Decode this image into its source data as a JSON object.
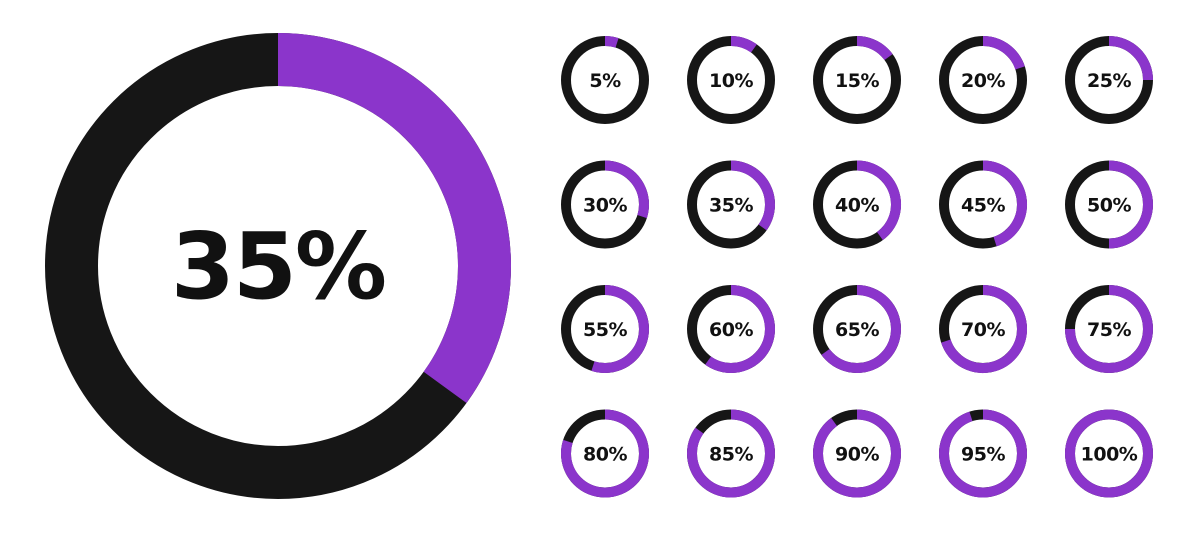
{
  "colors": {
    "filled": "#8b35cb",
    "track": "#161616",
    "label": "#111111",
    "background": "#ffffff"
  },
  "chart_data": {
    "type": "pie",
    "charts": [
      {
        "value": 35,
        "label": "35%",
        "emphasis": "large"
      },
      {
        "value": 5,
        "label": "5%"
      },
      {
        "value": 10,
        "label": "10%"
      },
      {
        "value": 15,
        "label": "15%"
      },
      {
        "value": 20,
        "label": "20%"
      },
      {
        "value": 25,
        "label": "25%"
      },
      {
        "value": 30,
        "label": "30%"
      },
      {
        "value": 35,
        "label": "35%"
      },
      {
        "value": 40,
        "label": "40%"
      },
      {
        "value": 45,
        "label": "45%"
      },
      {
        "value": 50,
        "label": "50%"
      },
      {
        "value": 55,
        "label": "55%"
      },
      {
        "value": 60,
        "label": "60%"
      },
      {
        "value": 65,
        "label": "65%"
      },
      {
        "value": 70,
        "label": "70%"
      },
      {
        "value": 75,
        "label": "75%"
      },
      {
        "value": 80,
        "label": "80%"
      },
      {
        "value": 85,
        "label": "85%"
      },
      {
        "value": 90,
        "label": "90%"
      },
      {
        "value": 95,
        "label": "95%"
      },
      {
        "value": 100,
        "label": "100%"
      }
    ]
  }
}
